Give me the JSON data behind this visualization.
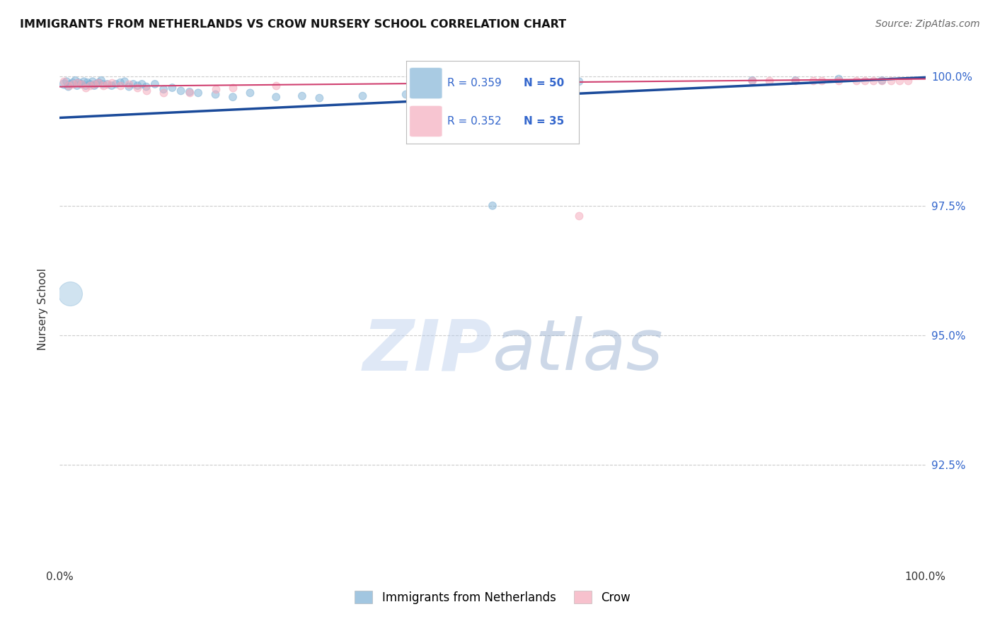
{
  "title": "IMMIGRANTS FROM NETHERLANDS VS CROW NURSERY SCHOOL CORRELATION CHART",
  "source": "Source: ZipAtlas.com",
  "ylabel": "Nursery School",
  "legend_bottom": [
    "Immigrants from Netherlands",
    "Crow"
  ],
  "xlim": [
    0.0,
    1.0
  ],
  "ylim": [
    0.905,
    1.005
  ],
  "yticks": [
    0.925,
    0.95,
    0.975,
    1.0
  ],
  "ytick_labels": [
    "92.5%",
    "95.0%",
    "97.5%",
    "100.0%"
  ],
  "xticks": [
    0.0,
    0.125,
    0.25,
    0.375,
    0.5,
    0.625,
    0.75,
    0.875,
    1.0
  ],
  "xtick_labels": [
    "0.0%",
    "",
    "",
    "",
    "",
    "",
    "",
    "",
    "100.0%"
  ],
  "blue_color": "#7BAFD4",
  "pink_color": "#F4A7B9",
  "blue_line_color": "#1A4A9A",
  "pink_line_color": "#D04070",
  "legend_R_blue": "R = 0.359",
  "legend_N_blue": "N = 50",
  "legend_R_pink": "R = 0.352",
  "legend_N_pink": "N = 35",
  "blue_scatter_x": [
    0.005,
    0.008,
    0.01,
    0.012,
    0.015,
    0.018,
    0.02,
    0.022,
    0.025,
    0.028,
    0.03,
    0.032,
    0.035,
    0.038,
    0.04,
    0.042,
    0.045,
    0.048,
    0.05,
    0.055,
    0.06,
    0.065,
    0.07,
    0.075,
    0.08,
    0.085,
    0.09,
    0.095,
    0.1,
    0.11,
    0.12,
    0.13,
    0.14,
    0.15,
    0.16,
    0.18,
    0.2,
    0.22,
    0.25,
    0.28,
    0.3,
    0.35,
    0.4,
    0.5,
    0.55,
    0.6,
    0.8,
    0.85,
    0.9,
    0.95
  ],
  "blue_scatter_y": [
    0.9985,
    0.999,
    0.998,
    0.9985,
    0.9988,
    0.9992,
    0.9982,
    0.9988,
    0.9985,
    0.999,
    0.9982,
    0.9988,
    0.9985,
    0.999,
    0.9982,
    0.9985,
    0.9988,
    0.9992,
    0.9985,
    0.9985,
    0.9982,
    0.9985,
    0.9988,
    0.999,
    0.998,
    0.9985,
    0.9982,
    0.9985,
    0.998,
    0.9985,
    0.9975,
    0.9978,
    0.9972,
    0.997,
    0.9968,
    0.9965,
    0.996,
    0.9968,
    0.996,
    0.9962,
    0.9958,
    0.9962,
    0.9965,
    0.975,
    0.9985,
    0.999,
    0.9992,
    0.9992,
    0.9995,
    0.9992
  ],
  "blue_scatter_sizes": [
    80,
    60,
    60,
    60,
    60,
    60,
    60,
    60,
    60,
    60,
    60,
    60,
    60,
    60,
    60,
    60,
    60,
    60,
    60,
    60,
    60,
    60,
    60,
    60,
    60,
    60,
    60,
    60,
    60,
    60,
    60,
    60,
    60,
    60,
    60,
    60,
    60,
    60,
    60,
    60,
    60,
    60,
    60,
    60,
    60,
    60,
    60,
    60,
    60,
    60
  ],
  "pink_scatter_x": [
    0.005,
    0.01,
    0.015,
    0.02,
    0.025,
    0.03,
    0.035,
    0.04,
    0.045,
    0.05,
    0.055,
    0.06,
    0.07,
    0.08,
    0.09,
    0.1,
    0.12,
    0.15,
    0.18,
    0.2,
    0.25,
    0.6,
    0.8,
    0.82,
    0.85,
    0.87,
    0.88,
    0.9,
    0.92,
    0.93,
    0.94,
    0.95,
    0.96,
    0.97,
    0.98
  ],
  "pink_scatter_y": [
    0.999,
    0.9982,
    0.9985,
    0.9988,
    0.9985,
    0.9978,
    0.9982,
    0.9985,
    0.9988,
    0.9982,
    0.9985,
    0.9988,
    0.9982,
    0.9985,
    0.9978,
    0.9972,
    0.9968,
    0.9968,
    0.9975,
    0.9978,
    0.9982,
    0.973,
    0.9992,
    0.9992,
    0.9992,
    0.9992,
    0.9992,
    0.9992,
    0.9992,
    0.9992,
    0.9992,
    0.9992,
    0.9992,
    0.9992,
    0.9992
  ],
  "blue_line_x": [
    0.0,
    1.0
  ],
  "blue_line_y": [
    0.992,
    0.9998
  ],
  "pink_line_x": [
    0.0,
    1.0
  ],
  "pink_line_y": [
    0.998,
    0.9995
  ],
  "watermark_zip": "ZIP",
  "watermark_atlas": "atlas",
  "background_color": "#ffffff"
}
